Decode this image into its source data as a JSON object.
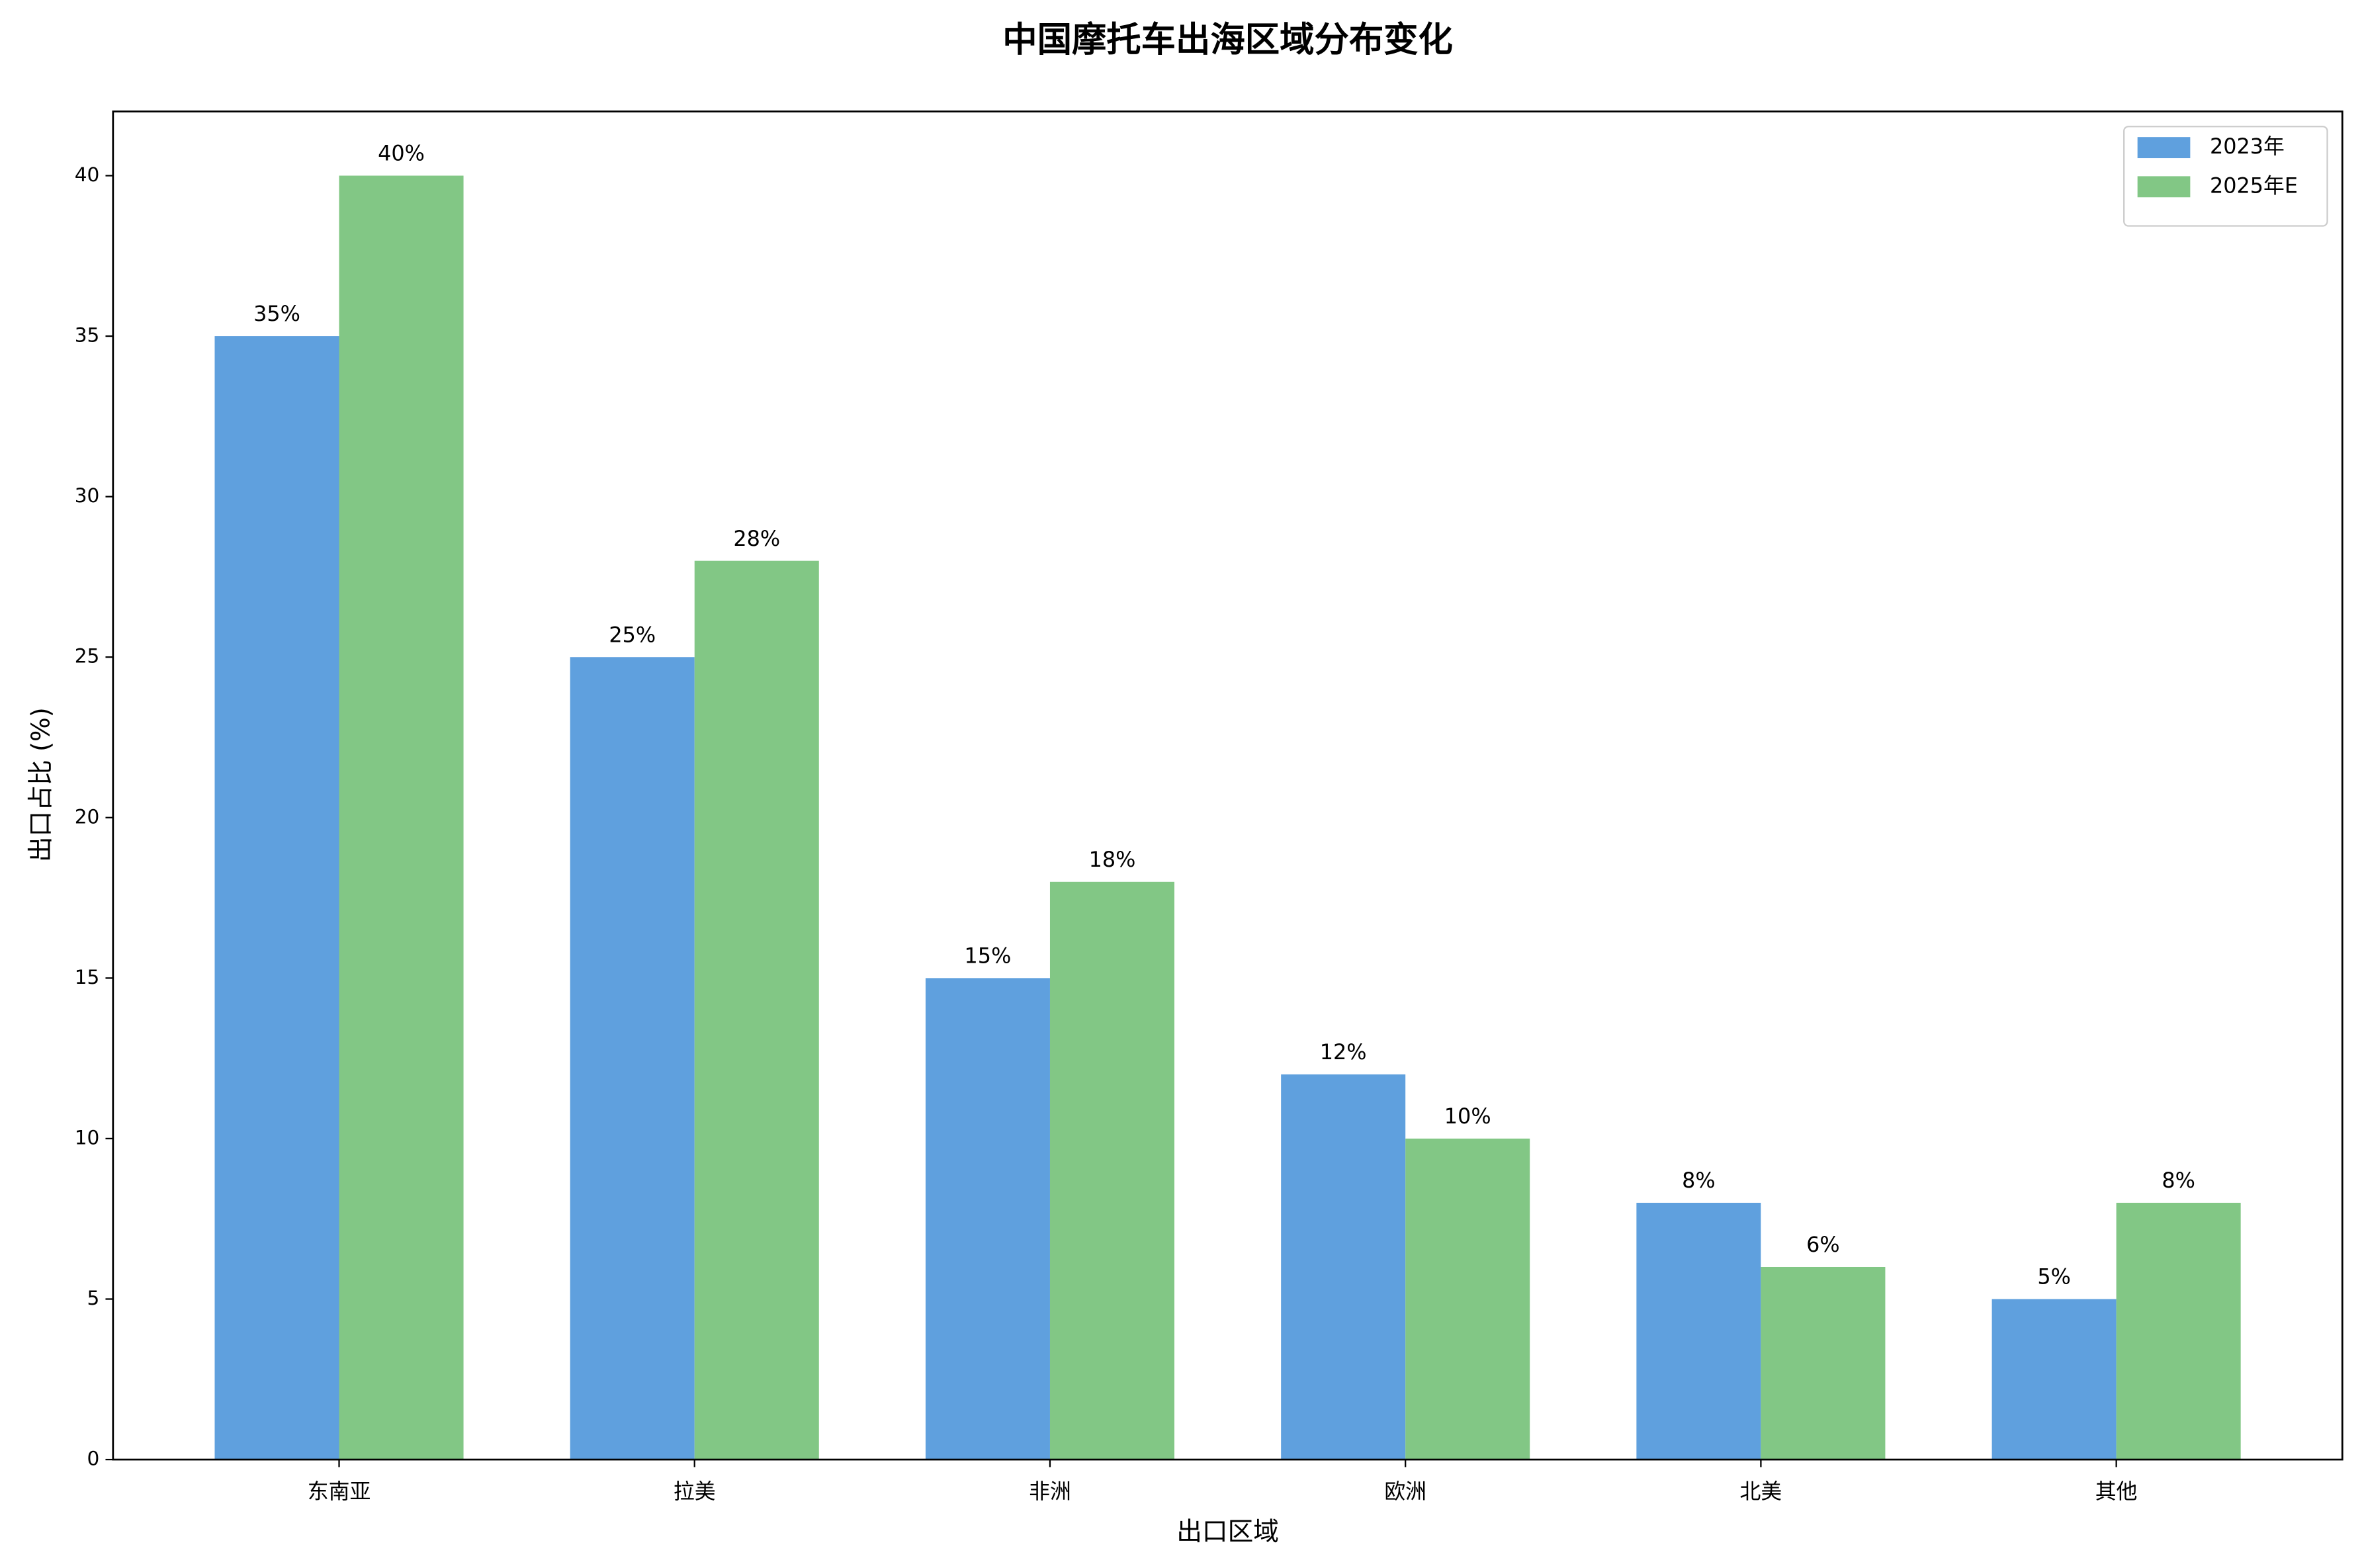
{
  "chart_data": {
    "type": "bar",
    "title": "中国摩托车出海区域分布变化",
    "x_label": "出口区域",
    "y_label": "出口占比 (%)",
    "categories": [
      "东南亚",
      "拉美",
      "非洲",
      "欧洲",
      "北美",
      "其他"
    ],
    "series": [
      {
        "name": "2023年",
        "color": "#5fa0de",
        "values": [
          35,
          25,
          15,
          12,
          8,
          5
        ],
        "value_labels": [
          "35%",
          "25%",
          "15%",
          "12%",
          "8%",
          "5%"
        ]
      },
      {
        "name": "2025年E",
        "color": "#82c785",
        "values": [
          40,
          28,
          18,
          10,
          6,
          8
        ],
        "value_labels": [
          "40%",
          "28%",
          "18%",
          "10%",
          "6%",
          "8%"
        ]
      }
    ],
    "ylim": [
      0,
      42
    ],
    "yticks": [
      0,
      5,
      10,
      15,
      20,
      25,
      30,
      35,
      40
    ],
    "legend": "upper right"
  }
}
